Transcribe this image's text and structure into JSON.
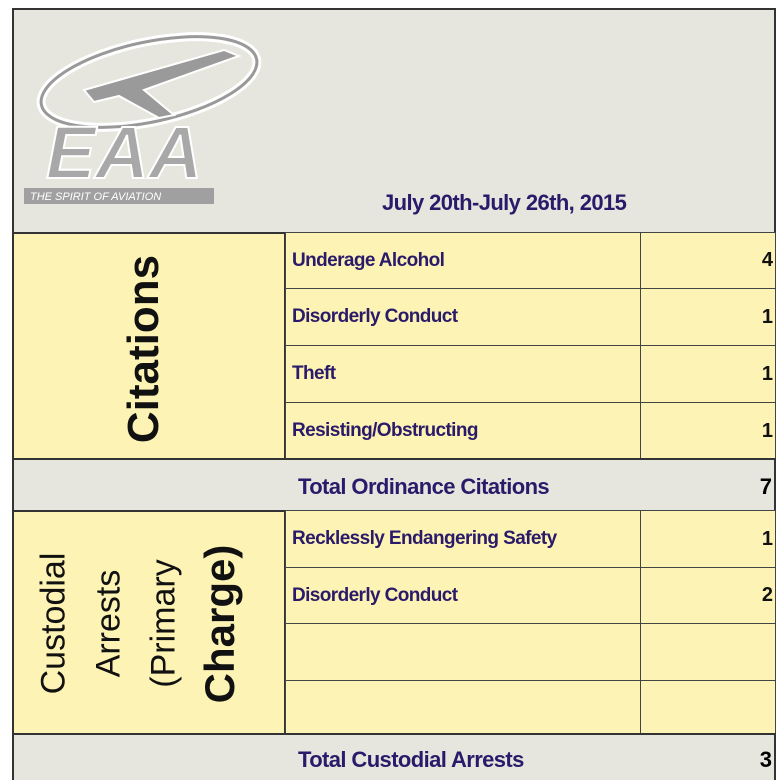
{
  "header": {
    "logo_text": "EAA",
    "logo_tagline": "THE SPIRIT OF AVIATION",
    "date_range": "July 20th-July 26th, 2015"
  },
  "citations": {
    "label": "Citations",
    "rows": [
      {
        "offense": "Underage Alcohol",
        "count": 4
      },
      {
        "offense": "Disorderly Conduct",
        "count": 1
      },
      {
        "offense": "Theft",
        "count": 1
      },
      {
        "offense": "Resisting/Obstructing",
        "count": 1
      }
    ],
    "total_label": "Total Ordinance Citations",
    "total": 7
  },
  "arrests": {
    "label_lines": [
      "Custodial",
      "Arrests",
      "(Primary",
      "Charge)"
    ],
    "rows": [
      {
        "offense": "Recklessly Endangering Safety",
        "count": 1
      },
      {
        "offense": "Disorderly Conduct",
        "count": 2
      }
    ],
    "total_label": "Total Custodial Arrests",
    "total": 3
  }
}
